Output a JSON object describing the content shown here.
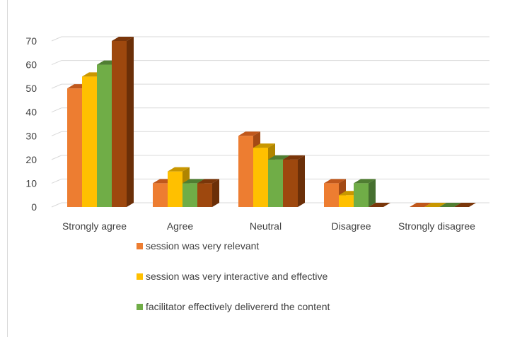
{
  "chart_data": {
    "type": "bar",
    "style": "3d-clustered-column",
    "categories": [
      "Strongly agree",
      "Agree",
      "Neutral",
      "Disagree",
      "Strongly disagree"
    ],
    "series": [
      {
        "name": "session was very relevant",
        "values": [
          50,
          10,
          30,
          10,
          0
        ],
        "color": "#ED7D31",
        "top": "#C0581C",
        "side": "#A34A15"
      },
      {
        "name": "session was very interactive and effective",
        "values": [
          55,
          15,
          25,
          5,
          0
        ],
        "color": "#FFC000",
        "top": "#C99700",
        "side": "#B08500"
      },
      {
        "name": "facilitator effectively delivererd the content",
        "values": [
          60,
          10,
          20,
          10,
          0
        ],
        "color": "#70AD47",
        "top": "#507E32",
        "side": "#467030"
      },
      {
        "values": [
          70,
          10,
          20,
          0,
          0
        ],
        "color": "#9E480E",
        "top": "#7A360A",
        "side": "#6B2F08"
      }
    ],
    "yticks": [
      0,
      10,
      20,
      30,
      40,
      50,
      60,
      70
    ],
    "ylim": [
      0,
      70
    ],
    "title": "",
    "xlabel": "",
    "ylabel": "",
    "grid": true,
    "legend_position": "bottom"
  }
}
